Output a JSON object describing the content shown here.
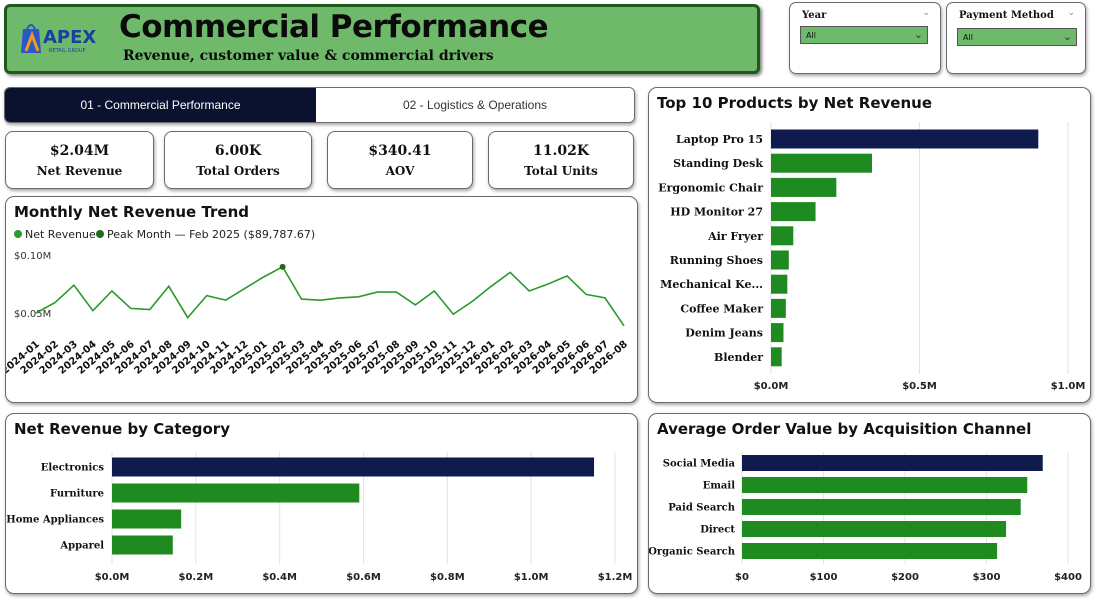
{
  "header": {
    "title": "Commercial Performance",
    "subtitle": "Revenue, customer value & commercial drivers",
    "logo_text": "APEX",
    "logo_subtext": "RETAIL GROUP"
  },
  "slicers": [
    {
      "label": "Year",
      "value": "All"
    },
    {
      "label": "Payment Method",
      "value": "All"
    }
  ],
  "tabs": [
    {
      "label": "01 - Commercial Performance",
      "active": true
    },
    {
      "label": "02 - Logistics & Operations",
      "active": false
    }
  ],
  "kpis": [
    {
      "value": "$2.04M",
      "label": "Net Revenue"
    },
    {
      "value": "6.00K",
      "label": "Total Orders"
    },
    {
      "value": "$340.41",
      "label": "AOV"
    },
    {
      "value": "11.02K",
      "label": "Total Units"
    }
  ],
  "colors": {
    "highlight": "#0f1b4d",
    "bar": "#1f8a1f",
    "line": "#2a9a2a",
    "accent": "#6fba6a"
  },
  "chart_data": [
    {
      "type": "line",
      "title": "Monthly Net Revenue Trend",
      "legend": [
        "Net Revenue",
        "Peak Month — Feb 2025 ($89,787.67)"
      ],
      "x": [
        "2024-01",
        "2024-02",
        "2024-03",
        "2024-04",
        "2024-05",
        "2024-06",
        "2024-07",
        "2024-08",
        "2024-09",
        "2024-10",
        "2024-11",
        "2024-12",
        "2025-01",
        "2025-02",
        "2025-03",
        "2025-04",
        "2025-05",
        "2025-06",
        "2025-07",
        "2025-08",
        "2025-09",
        "2025-10",
        "2025-11",
        "2025-12",
        "2026-01",
        "2026-02",
        "2026-03",
        "2026-04",
        "2026-05",
        "2026-06",
        "2026-07",
        "2026-08"
      ],
      "ytick_labels": [
        "$0.10M",
        "$0.05M"
      ],
      "ylim": [
        0.0,
        0.1
      ],
      "peak_index": 13,
      "series": [
        {
          "name": "Net Revenue",
          "values": [
            0.05,
            0.059,
            0.074,
            0.052,
            0.069,
            0.054,
            0.053,
            0.073,
            0.046,
            0.065,
            0.061,
            0.071,
            0.081,
            0.0898,
            0.062,
            0.061,
            0.063,
            0.064,
            0.068,
            0.068,
            0.057,
            0.069,
            0.049,
            0.06,
            0.073,
            0.085,
            0.069,
            0.075,
            0.082,
            0.066,
            0.063,
            0.039
          ]
        }
      ]
    },
    {
      "type": "bar",
      "orientation": "horizontal",
      "title": "Top 10 Products by Net Revenue",
      "categories": [
        "Laptop Pro 15",
        "Standing Desk",
        "Ergonomic Chair",
        "HD Monitor 27",
        "Air Fryer",
        "Running Shoes",
        "Mechanical Ke...",
        "Coffee Maker",
        "Denim Jeans",
        "Blender"
      ],
      "values": [
        0.9,
        0.34,
        0.22,
        0.15,
        0.075,
        0.06,
        0.055,
        0.05,
        0.042,
        0.036
      ],
      "xlim": [
        0.0,
        1.0
      ],
      "xtick_labels": [
        "$0.0M",
        "$0.5M",
        "$1.0M"
      ],
      "xticks": [
        0.0,
        0.5,
        1.0
      ],
      "highlight_index": 0,
      "grid": true
    },
    {
      "type": "bar",
      "orientation": "horizontal",
      "title": "Net Revenue by Category",
      "categories": [
        "Electronics",
        "Furniture",
        "Home Appliances",
        "Apparel"
      ],
      "values": [
        1.15,
        0.59,
        0.165,
        0.145
      ],
      "xlim": [
        0.0,
        1.2
      ],
      "xtick_labels": [
        "$0.0M",
        "$0.2M",
        "$0.4M",
        "$0.6M",
        "$0.8M",
        "$1.0M",
        "$1.2M"
      ],
      "xticks": [
        0.0,
        0.2,
        0.4,
        0.6,
        0.8,
        1.0,
        1.2
      ],
      "highlight_index": 0,
      "grid": true
    },
    {
      "type": "bar",
      "orientation": "horizontal",
      "title": "Average Order Value by Acquisition Channel",
      "categories": [
        "Social Media",
        "Email",
        "Paid Search",
        "Direct",
        "Organic Search"
      ],
      "values": [
        369,
        350,
        342,
        324,
        313
      ],
      "xlim": [
        0,
        400
      ],
      "xtick_labels": [
        "$0",
        "$100",
        "$200",
        "$300",
        "$400"
      ],
      "xticks": [
        0,
        100,
        200,
        300,
        400
      ],
      "highlight_index": 0,
      "grid": true
    }
  ]
}
